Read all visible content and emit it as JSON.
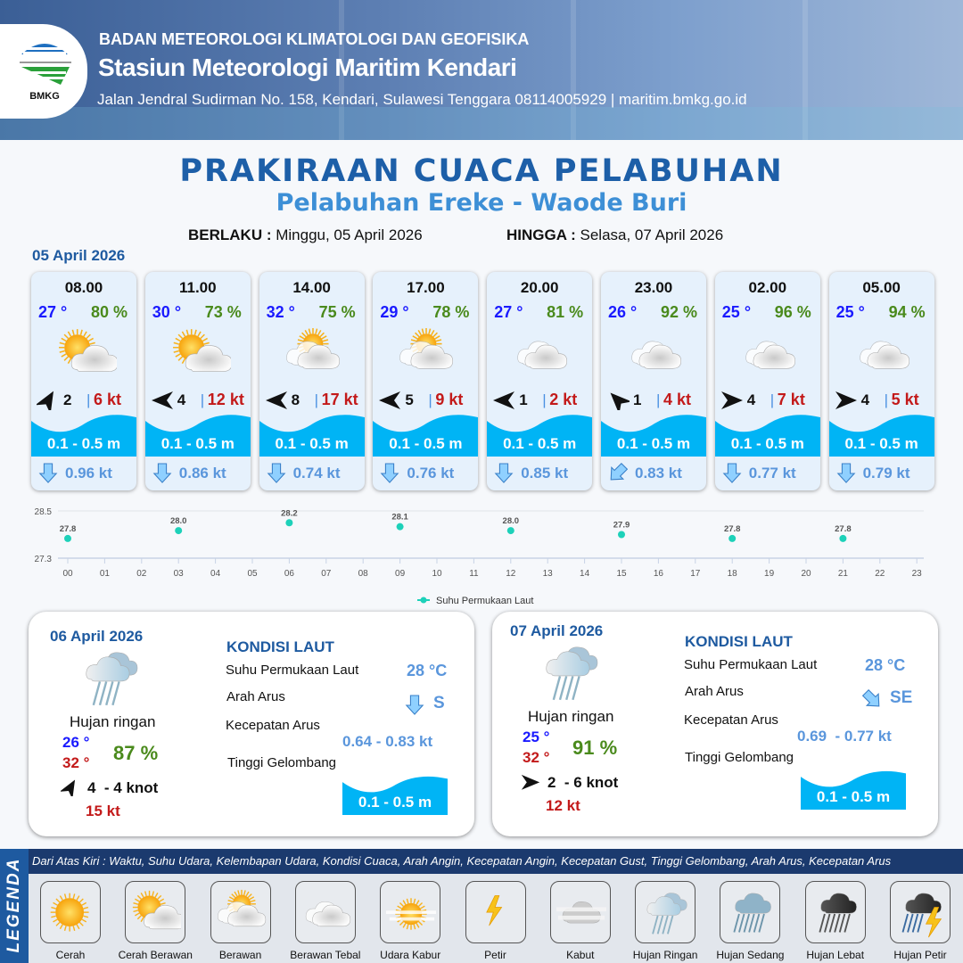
{
  "header": {
    "agency": "BADAN METEOROLOGI KLIMATOLOGI DAN GEOFISIKA",
    "station": "Stasiun Meteorologi Maritim Kendari",
    "address": "Jalan Jendral Sudirman No. 158, Kendari, Sulawesi Tenggara  08114005929 | maritim.bmkg.go.id",
    "logo_text": "BMKG"
  },
  "title": "PRAKIRAAN CUACA PELABUHAN",
  "subtitle": "Pelabuhan Ereke - Waode Buri",
  "validity": {
    "from_label": "BERLAKU :",
    "from": "Minggu, 05 April 2026",
    "to_label": "HINGGA :",
    "to": "Selasa, 07 April 2026"
  },
  "day1": {
    "date": "05 April 2026",
    "forecasts": [
      {
        "time": "08.00",
        "temp": "27 °",
        "hum": "80 %",
        "weather": "cerah-berawan",
        "wind_dir_deg": 30,
        "wind": "2",
        "gust": "6 kt",
        "wave": "0.1 - 0.5 m",
        "current_dir_deg": 180,
        "current": "0.96 kt"
      },
      {
        "time": "11.00",
        "temp": "30 °",
        "hum": "73 %",
        "weather": "cerah-berawan",
        "wind_dir_deg": 270,
        "wind": "4",
        "gust": "12 kt",
        "wave": "0.1 - 0.5 m",
        "current_dir_deg": 180,
        "current": "0.86 kt"
      },
      {
        "time": "14.00",
        "temp": "32 °",
        "hum": "75 %",
        "weather": "berawan",
        "wind_dir_deg": 270,
        "wind": "8",
        "gust": "17 kt",
        "wave": "0.1 - 0.5 m",
        "current_dir_deg": 180,
        "current": "0.74 kt"
      },
      {
        "time": "17.00",
        "temp": "29 °",
        "hum": "78 %",
        "weather": "berawan",
        "wind_dir_deg": 270,
        "wind": "5",
        "gust": "9 kt",
        "wave": "0.1 - 0.5 m",
        "current_dir_deg": 180,
        "current": "0.76 kt"
      },
      {
        "time": "20.00",
        "temp": "27 °",
        "hum": "81 %",
        "weather": "berawan-tebal",
        "wind_dir_deg": 270,
        "wind": "1",
        "gust": "2 kt",
        "wave": "0.1 - 0.5 m",
        "current_dir_deg": 180,
        "current": "0.85 kt"
      },
      {
        "time": "23.00",
        "temp": "26 °",
        "hum": "92 %",
        "weather": "berawan-tebal",
        "wind_dir_deg": 315,
        "wind": "1",
        "gust": "4 kt",
        "wave": "0.1 - 0.5 m",
        "current_dir_deg": 225,
        "current": "0.83 kt"
      },
      {
        "time": "02.00",
        "temp": "25 °",
        "hum": "96 %",
        "weather": "berawan-tebal",
        "wind_dir_deg": 90,
        "wind": "4",
        "gust": "7 kt",
        "wave": "0.1 - 0.5 m",
        "current_dir_deg": 180,
        "current": "0.77 kt"
      },
      {
        "time": "05.00",
        "temp": "25 °",
        "hum": "94 %",
        "weather": "berawan-tebal",
        "wind_dir_deg": 90,
        "wind": "4",
        "gust": "5 kt",
        "wave": "0.1 - 0.5 m",
        "current_dir_deg": 180,
        "current": "0.79 kt"
      }
    ]
  },
  "chart_data": {
    "type": "scatter",
    "x": [
      "00",
      "03",
      "06",
      "09",
      "12",
      "15",
      "18",
      "21"
    ],
    "values": [
      27.8,
      28.0,
      28.2,
      28.1,
      28.0,
      27.9,
      27.8,
      27.8
    ],
    "xticks": [
      "00",
      "01",
      "02",
      "03",
      "04",
      "05",
      "06",
      "07",
      "08",
      "09",
      "10",
      "11",
      "12",
      "13",
      "14",
      "15",
      "16",
      "17",
      "18",
      "19",
      "20",
      "21",
      "22",
      "23"
    ],
    "yticks": [
      "28.5",
      "27.3"
    ],
    "ylim": [
      27.3,
      28.5
    ],
    "series_name": "Suhu Permukaan Laut",
    "color": "#1dd1b9",
    "legend": "bottom"
  },
  "days": [
    {
      "date": "06 April 2026",
      "weather": "hujan-ringan",
      "weather_label": "Hujan ringan",
      "tmin": "26 °",
      "tmax": "32 °",
      "hum": "87 %",
      "wind_dir_deg": 30,
      "wind": "4  - 4 knot",
      "gust": "15 kt",
      "sea": {
        "title": "KONDISI LAUT",
        "sst_label": "Suhu Permukaan Laut",
        "sst": "28 °C",
        "dir_label": "Arah Arus",
        "dir": "S",
        "dir_deg": 180,
        "speed_label": "Kecepatan Arus",
        "speed": "0.64 - 0.83 kt",
        "wave_label": "Tinggi Gelombang",
        "wave": "0.1 - 0.5 m"
      }
    },
    {
      "date": "07 April 2026",
      "weather": "hujan-ringan",
      "weather_label": "Hujan ringan",
      "tmin": "25 °",
      "tmax": "32 °",
      "hum": "91 %",
      "wind_dir_deg": 90,
      "wind": "2  - 6 knot",
      "gust": "12 kt",
      "sea": {
        "title": "KONDISI LAUT",
        "sst_label": "Suhu Permukaan Laut",
        "sst": "28 °C",
        "dir_label": "Arah Arus",
        "dir": "SE",
        "dir_deg": 135,
        "speed_label": "Kecepatan Arus",
        "speed": "0.69  - 0.77 kt",
        "wave_label": "Tinggi Gelombang",
        "wave": "0.1 - 0.5 m"
      }
    }
  ],
  "legend": {
    "title": "LEGENDA",
    "description": "Dari Atas Kiri : Waktu, Suhu Udara, Kelembapan Udara, Kondisi Cuaca, Arah Angin, Kecepatan Angin, Kecepatan Gust, Tinggi Gelombang, Arah Arus, Kecepatan Arus",
    "items": [
      {
        "label": "Cerah",
        "icon": "cerah"
      },
      {
        "label": "Cerah Berawan",
        "icon": "cerah-berawan"
      },
      {
        "label": "Berawan",
        "icon": "berawan"
      },
      {
        "label": "Berawan Tebal",
        "icon": "berawan-tebal"
      },
      {
        "label": "Udara Kabur",
        "icon": "udara-kabur"
      },
      {
        "label": "Petir",
        "icon": "petir"
      },
      {
        "label": "Kabut",
        "icon": "kabut"
      },
      {
        "label": "Hujan Ringan",
        "icon": "hujan-ringan"
      },
      {
        "label": "Hujan Sedang",
        "icon": "hujan-sedang"
      },
      {
        "label": "Hujan Lebat",
        "icon": "hujan-lebat"
      },
      {
        "label": "Hujan Petir",
        "icon": "hujan-petir"
      }
    ]
  },
  "colors": {
    "title": "#1d5fa8",
    "wave": "#00b4f5",
    "temp": "#1a1aff",
    "humidity": "#4a8a1c",
    "gust": "#c31a1a",
    "current": "#5a96dc"
  }
}
